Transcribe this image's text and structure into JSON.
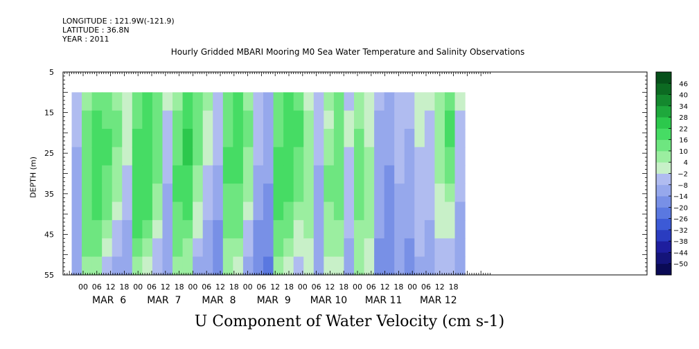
{
  "header": {
    "longitude": "LONGITUDE : 121.9W(-121.9)",
    "latitude": "LATITUDE : 36.8N",
    "year": "YEAR : 2011",
    "title": "Hourly Gridded MBARI Mooring M0 Sea Water Temperature and Salinity Observations"
  },
  "bottom_label": "U Component of Water Velocity (cm s-1)",
  "chart_data": {
    "type": "heatmap",
    "title": "Hourly Gridded MBARI Mooring M0 Sea Water Temperature and Salinity Observations",
    "variable": "U Component of Water Velocity (cm s-1)",
    "ylabel": "DEPTH (m)",
    "y_reversed": true,
    "ylim": [
      5,
      55
    ],
    "y_ticks": [
      5,
      15,
      25,
      35,
      45,
      55
    ],
    "data_depth_range": [
      10,
      55
    ],
    "x_hour_labels": [
      "00",
      "06",
      "12",
      "18",
      "00",
      "06",
      "12",
      "18",
      "00",
      "06",
      "12",
      "18",
      "00",
      "06",
      "12",
      "18",
      "00",
      "06",
      "12",
      "18",
      "00",
      "06",
      "12",
      "18",
      "00",
      "06",
      "12",
      "18"
    ],
    "x_day_labels": [
      "MAR  6",
      "MAR  7",
      "MAR  8",
      "MAR  9",
      "MAR 10",
      "MAR 11",
      "MAR 12"
    ],
    "data_time_start": "2011-03-05 19:00",
    "data_time_end": "2011-03-12 23:00",
    "colorbar_levels": [
      -50,
      -44,
      -38,
      -32,
      -26,
      -20,
      -14,
      -8,
      -2,
      4,
      10,
      16,
      22,
      28,
      34,
      40,
      46
    ],
    "colorbar_colors": [
      "#0a0a55",
      "#14147a",
      "#1e1e9e",
      "#2a3cc0",
      "#3c5ad6",
      "#5a78e0",
      "#7890e6",
      "#96a8ec",
      "#b0bcf0",
      "#c8f0c8",
      "#9beea0",
      "#6ee680",
      "#46dc64",
      "#2cc84c",
      "#1ea83c",
      "#14882e",
      "#0c6a22",
      "#06501a"
    ],
    "columns": [
      [
        -6,
        -8,
        -8,
        -10,
        -10,
        -12,
        -12,
        -12,
        -10,
        -10
      ],
      [
        6,
        10,
        12,
        12,
        14,
        14,
        14,
        12,
        10,
        8
      ],
      [
        14,
        16,
        18,
        18,
        18,
        16,
        16,
        14,
        10,
        6
      ],
      [
        12,
        14,
        16,
        16,
        14,
        12,
        10,
        6,
        2,
        -4
      ],
      [
        6,
        10,
        10,
        8,
        6,
        4,
        0,
        -4,
        -8,
        -10
      ],
      [
        2,
        2,
        0,
        -2,
        -4,
        -6,
        -8,
        -10,
        -12,
        -12
      ],
      [
        12,
        14,
        16,
        18,
        18,
        20,
        18,
        16,
        12,
        8
      ],
      [
        16,
        18,
        20,
        20,
        20,
        18,
        16,
        12,
        6,
        2
      ],
      [
        10,
        12,
        14,
        12,
        10,
        8,
        4,
        0,
        -4,
        -8
      ],
      [
        -2,
        -4,
        -6,
        -6,
        -8,
        -10,
        -10,
        -12,
        -12,
        -14
      ],
      [
        8,
        10,
        12,
        14,
        16,
        16,
        14,
        12,
        10,
        6
      ],
      [
        18,
        20,
        22,
        22,
        20,
        18,
        16,
        12,
        8,
        4
      ],
      [
        14,
        14,
        12,
        10,
        8,
        6,
        2,
        -2,
        -6,
        -10
      ],
      [
        4,
        2,
        0,
        -2,
        -4,
        -6,
        -8,
        -10,
        -12,
        -14
      ],
      [
        -4,
        -6,
        -8,
        -8,
        -10,
        -12,
        -14,
        -16,
        -16,
        -18
      ],
      [
        10,
        12,
        14,
        16,
        16,
        14,
        12,
        10,
        8,
        6
      ],
      [
        16,
        18,
        18,
        18,
        16,
        14,
        12,
        10,
        6,
        2
      ],
      [
        8,
        10,
        10,
        8,
        6,
        4,
        0,
        -4,
        -8,
        -10
      ],
      [
        -4,
        -4,
        -6,
        -8,
        -10,
        -12,
        -14,
        -16,
        -18,
        -18
      ],
      [
        -10,
        -12,
        -12,
        -14,
        -14,
        -16,
        -16,
        -18,
        -20,
        -22
      ],
      [
        10,
        12,
        14,
        16,
        16,
        18,
        16,
        14,
        10,
        6
      ],
      [
        16,
        18,
        20,
        20,
        18,
        16,
        14,
        10,
        6,
        2
      ],
      [
        14,
        16,
        16,
        14,
        12,
        10,
        6,
        2,
        -2,
        -6
      ],
      [
        2,
        4,
        6,
        6,
        8,
        8,
        6,
        4,
        2,
        0
      ],
      [
        -6,
        -6,
        -8,
        -8,
        -10,
        -10,
        -12,
        -12,
        -14,
        -14
      ],
      [
        4,
        2,
        6,
        8,
        10,
        10,
        8,
        6,
        4,
        2
      ],
      [
        10,
        12,
        12,
        14,
        14,
        12,
        10,
        8,
        4,
        2
      ],
      [
        -4,
        -2,
        -2,
        -4,
        -6,
        -6,
        -8,
        -8,
        -10,
        -10
      ],
      [
        6,
        8,
        10,
        12,
        12,
        12,
        10,
        8,
        6,
        4
      ],
      [
        -2,
        0,
        2,
        4,
        4,
        6,
        6,
        4,
        2,
        0
      ],
      [
        -8,
        -10,
        -10,
        -12,
        -12,
        -14,
        -14,
        -14,
        -16,
        -16
      ],
      [
        -10,
        -12,
        -14,
        -14,
        -16,
        -16,
        -16,
        -18,
        -18,
        -20
      ],
      [
        -4,
        -6,
        -6,
        -8,
        -8,
        -10,
        -10,
        -12,
        -12,
        -14
      ],
      [
        -6,
        -8,
        -10,
        -10,
        -12,
        -12,
        -14,
        -14,
        -16,
        -16
      ],
      [
        2,
        0,
        -2,
        -4,
        -4,
        -6,
        -6,
        -8,
        -8,
        -10
      ],
      [
        -2,
        -4,
        -4,
        -6,
        -6,
        -8,
        -8,
        -10,
        -10,
        -12
      ],
      [
        6,
        8,
        8,
        6,
        4,
        2,
        0,
        -2,
        -4,
        -6
      ],
      [
        14,
        16,
        16,
        14,
        10,
        6,
        2,
        -2,
        -4,
        -6
      ],
      [
        -2,
        -4,
        -6,
        -6,
        -8,
        -8,
        -10,
        -10,
        -12,
        -12
      ]
    ]
  }
}
